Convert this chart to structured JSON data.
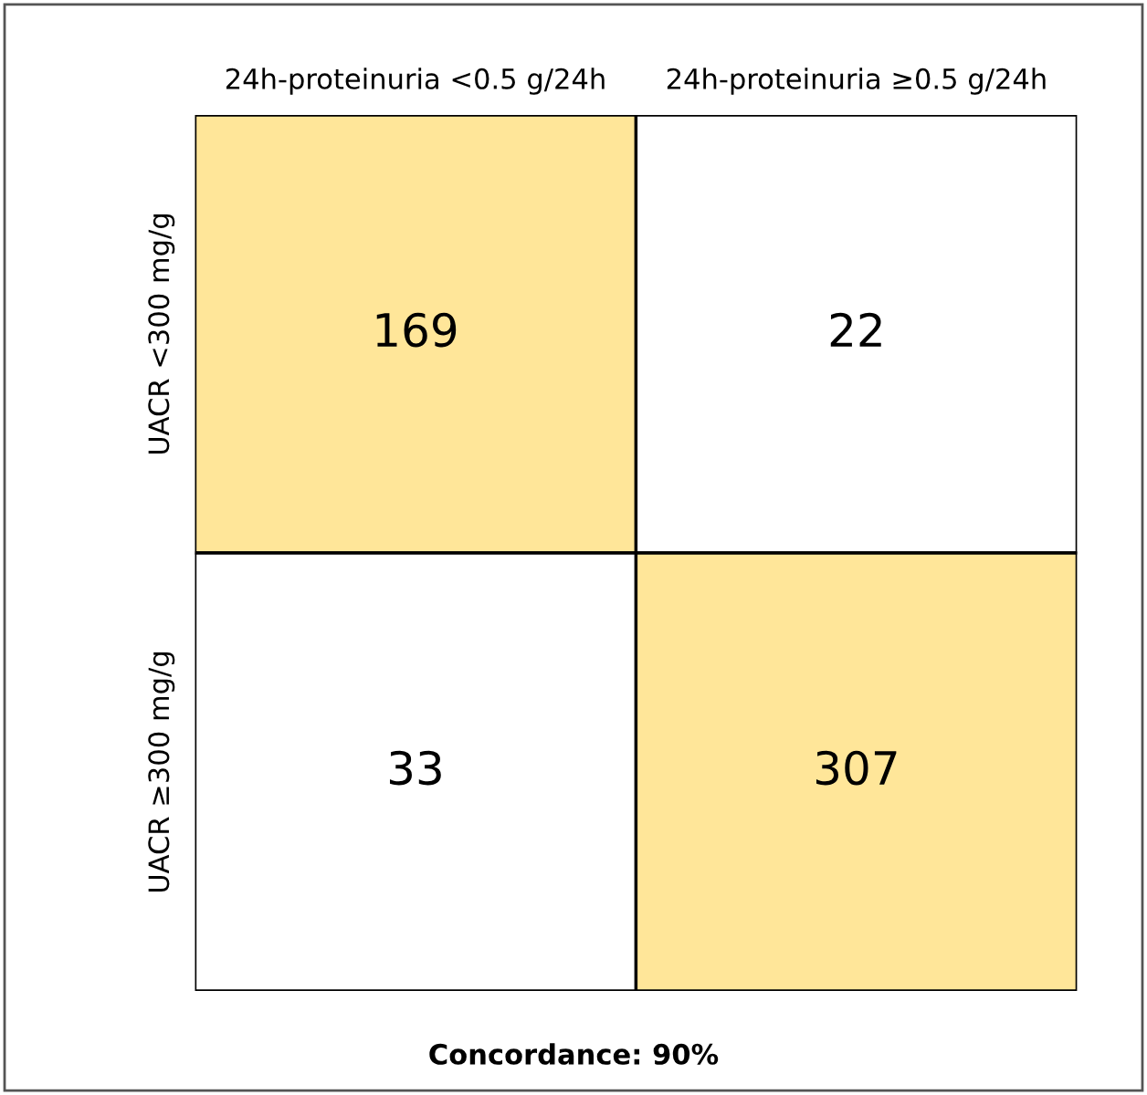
{
  "chart_data": {
    "type": "heatmap",
    "categories": [
      "24h-proteinuria <0.5 g/24h",
      "24h-proteinuria ≥0.5 g/24h"
    ],
    "y_categories": [
      "UACR <300 mg/g",
      "UACR ≥300 mg/g"
    ],
    "cells": [
      [
        169,
        22
      ],
      [
        33,
        307
      ]
    ],
    "colors": [
      [
        "#ffe699",
        "#ffffff"
      ],
      [
        "#ffffff",
        "#ffe699"
      ]
    ],
    "data_labels": true,
    "annotations": [
      "Concordance: 90%"
    ]
  }
}
